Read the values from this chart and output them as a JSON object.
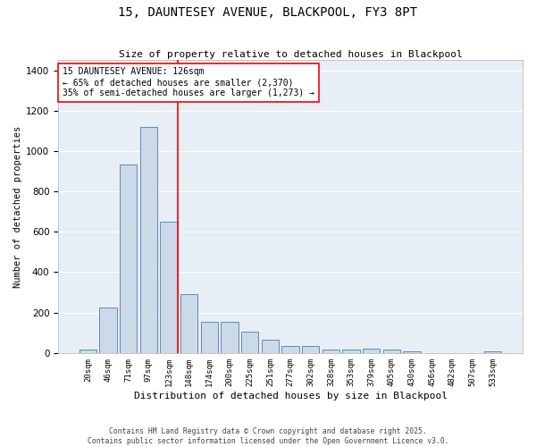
{
  "title": "15, DAUNTESEY AVENUE, BLACKPOOL, FY3 8PT",
  "subtitle": "Size of property relative to detached houses in Blackpool",
  "xlabel": "Distribution of detached houses by size in Blackpool",
  "ylabel": "Number of detached properties",
  "bar_color": "#ccd9e8",
  "bar_edge_color": "#5b8db8",
  "bg_color": "#e8eef5",
  "grid_color": "#ffffff",
  "categories": [
    "20sqm",
    "46sqm",
    "71sqm",
    "97sqm",
    "123sqm",
    "148sqm",
    "174sqm",
    "200sqm",
    "225sqm",
    "251sqm",
    "277sqm",
    "302sqm",
    "328sqm",
    "353sqm",
    "379sqm",
    "405sqm",
    "430sqm",
    "456sqm",
    "482sqm",
    "507sqm",
    "533sqm"
  ],
  "values": [
    15,
    225,
    935,
    1120,
    650,
    290,
    155,
    155,
    105,
    65,
    35,
    35,
    15,
    15,
    20,
    15,
    10,
    0,
    0,
    0,
    10
  ],
  "ylim": [
    0,
    1450
  ],
  "yticks": [
    0,
    200,
    400,
    600,
    800,
    1000,
    1200,
    1400
  ],
  "annotation_text": "15 DAUNTESEY AVENUE: 126sqm\n← 65% of detached houses are smaller (2,370)\n35% of semi-detached houses are larger (1,273) →",
  "footer1": "Contains HM Land Registry data © Crown copyright and database right 2025.",
  "footer2": "Contains public sector information licensed under the Open Government Licence v3.0."
}
